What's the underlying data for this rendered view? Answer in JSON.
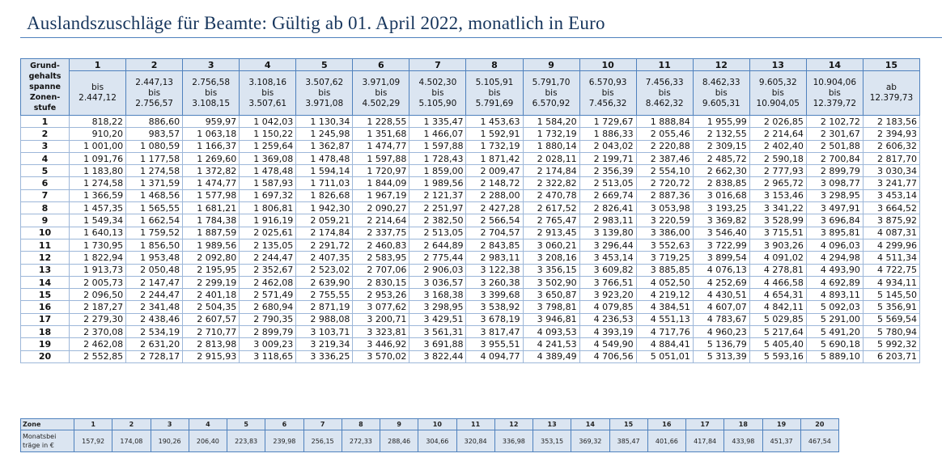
{
  "title": "Auslandszuschläge für Beamte: Gültig ab 01. April 2022, monatlich in Euro",
  "table": {
    "corner": [
      "Grund-",
      "gehalts",
      "spanne",
      "Zonen-",
      "stufe"
    ],
    "columns": [
      {
        "zone": "1",
        "range": [
          "bis",
          "2.447,12"
        ]
      },
      {
        "zone": "2",
        "range": [
          "2.447,13",
          "bis",
          "2.756,57"
        ]
      },
      {
        "zone": "3",
        "range": [
          "2.756,58",
          "bis",
          "3.108,15"
        ]
      },
      {
        "zone": "4",
        "range": [
          "3.108,16",
          "bis",
          "3.507,61"
        ]
      },
      {
        "zone": "5",
        "range": [
          "3.507,62",
          "bis",
          "3.971,08"
        ]
      },
      {
        "zone": "6",
        "range": [
          "3.971,09",
          "bis",
          "4.502,29"
        ]
      },
      {
        "zone": "7",
        "range": [
          "4.502,30",
          "bis",
          "5.105,90"
        ]
      },
      {
        "zone": "8",
        "range": [
          "5.105,91",
          "bis",
          "5.791,69"
        ]
      },
      {
        "zone": "9",
        "range": [
          "5.791,70",
          "bis",
          "6.570,92"
        ]
      },
      {
        "zone": "10",
        "range": [
          "6.570,93",
          "bis",
          "7.456,32"
        ]
      },
      {
        "zone": "11",
        "range": [
          "7.456,33",
          "bis",
          "8.462,32"
        ]
      },
      {
        "zone": "12",
        "range": [
          "8.462,33",
          "bis",
          "9.605,31"
        ]
      },
      {
        "zone": "13",
        "range": [
          "9.605,32",
          "bis",
          "10.904,05"
        ]
      },
      {
        "zone": "14",
        "range": [
          "10.904,06",
          "bis",
          "12.379,72"
        ]
      },
      {
        "zone": "15",
        "range": [
          "ab",
          "12.379,73"
        ]
      }
    ],
    "rows": [
      [
        "1",
        "818,22",
        "886,60",
        "959,97",
        "1 042,03",
        "1 130,34",
        "1 228,55",
        "1 335,47",
        "1 453,63",
        "1 584,20",
        "1 729,67",
        "1 888,84",
        "1 955,99",
        "2 026,85",
        "2 102,72",
        "2 183,56"
      ],
      [
        "2",
        "910,20",
        "983,57",
        "1 063,18",
        "1 150,22",
        "1 245,98",
        "1 351,68",
        "1 466,07",
        "1 592,91",
        "1 732,19",
        "1 886,33",
        "2 055,46",
        "2 132,55",
        "2 214,64",
        "2 301,67",
        "2 394,93"
      ],
      [
        "3",
        "1 001,00",
        "1 080,59",
        "1 166,37",
        "1 259,64",
        "1 362,87",
        "1 474,77",
        "1 597,88",
        "1 732,19",
        "1 880,14",
        "2 043,02",
        "2 220,88",
        "2 309,15",
        "2 402,40",
        "2 501,88",
        "2 606,32"
      ],
      [
        "4",
        "1 091,76",
        "1 177,58",
        "1 269,60",
        "1 369,08",
        "1 478,48",
        "1 597,88",
        "1 728,43",
        "1 871,42",
        "2 028,11",
        "2 199,71",
        "2 387,46",
        "2 485,72",
        "2 590,18",
        "2 700,84",
        "2 817,70"
      ],
      [
        "5",
        "1 183,80",
        "1 274,58",
        "1 372,82",
        "1 478,48",
        "1 594,14",
        "1 720,97",
        "1 859,00",
        "2 009,47",
        "2 174,84",
        "2 356,39",
        "2 554,10",
        "2 662,30",
        "2 777,93",
        "2 899,79",
        "3 030,34"
      ],
      [
        "6",
        "1 274,58",
        "1 371,59",
        "1 474,77",
        "1 587,93",
        "1 711,03",
        "1 844,09",
        "1 989,56",
        "2 148,72",
        "2 322,82",
        "2 513,05",
        "2 720,72",
        "2 838,85",
        "2 965,72",
        "3 098,77",
        "3 241,77"
      ],
      [
        "7",
        "1 366,59",
        "1 468,56",
        "1 577,98",
        "1 697,32",
        "1 826,68",
        "1 967,19",
        "2 121,37",
        "2 288,00",
        "2 470,78",
        "2 669,74",
        "2 887,36",
        "3 016,68",
        "3 153,46",
        "3 298,95",
        "3 453,14"
      ],
      [
        "8",
        "1 457,35",
        "1 565,55",
        "1 681,21",
        "1 806,81",
        "1 942,30",
        "2 090,27",
        "2 251,97",
        "2 427,28",
        "2 617,52",
        "2 826,41",
        "3 053,98",
        "3 193,25",
        "3 341,22",
        "3 497,91",
        "3 664,52"
      ],
      [
        "9",
        "1 549,34",
        "1 662,54",
        "1 784,38",
        "1 916,19",
        "2 059,21",
        "2 214,64",
        "2 382,50",
        "2 566,54",
        "2 765,47",
        "2 983,11",
        "3 220,59",
        "3 369,82",
        "3 528,99",
        "3 696,84",
        "3 875,92"
      ],
      [
        "10",
        "1 640,13",
        "1 759,52",
        "1 887,59",
        "2 025,61",
        "2 174,84",
        "2 337,75",
        "2 513,05",
        "2 704,57",
        "2 913,45",
        "3 139,80",
        "3 386,00",
        "3 546,40",
        "3 715,51",
        "3 895,81",
        "4 087,31"
      ],
      [
        "11",
        "1 730,95",
        "1 856,50",
        "1 989,56",
        "2 135,05",
        "2 291,72",
        "2 460,83",
        "2 644,89",
        "2 843,85",
        "3 060,21",
        "3 296,44",
        "3 552,63",
        "3 722,99",
        "3 903,26",
        "4 096,03",
        "4 299,96"
      ],
      [
        "12",
        "1 822,94",
        "1 953,48",
        "2 092,80",
        "2 244,47",
        "2 407,35",
        "2 583,95",
        "2 775,44",
        "2 983,11",
        "3 208,16",
        "3 453,14",
        "3 719,25",
        "3 899,54",
        "4 091,02",
        "4 294,98",
        "4 511,34"
      ],
      [
        "13",
        "1 913,73",
        "2 050,48",
        "2 195,95",
        "2 352,67",
        "2 523,02",
        "2 707,06",
        "2 906,03",
        "3 122,38",
        "3 356,15",
        "3 609,82",
        "3 885,85",
        "4 076,13",
        "4 278,81",
        "4 493,90",
        "4 722,75"
      ],
      [
        "14",
        "2 005,73",
        "2 147,47",
        "2 299,19",
        "2 462,08",
        "2 639,90",
        "2 830,15",
        "3 036,57",
        "3 260,38",
        "3 502,90",
        "3 766,51",
        "4 052,50",
        "4 252,69",
        "4 466,58",
        "4 692,89",
        "4 934,11"
      ],
      [
        "15",
        "2 096,50",
        "2 244,47",
        "2 401,18",
        "2 571,49",
        "2 755,55",
        "2 953,26",
        "3 168,38",
        "3 399,68",
        "3 650,87",
        "3 923,20",
        "4 219,12",
        "4 430,51",
        "4 654,31",
        "4 893,11",
        "5 145,50"
      ],
      [
        "16",
        "2 187,27",
        "2 341,48",
        "2 504,35",
        "2 680,94",
        "2 871,19",
        "3 077,62",
        "3 298,95",
        "3 538,92",
        "3 798,81",
        "4 079,85",
        "4 384,51",
        "4 607,07",
        "4 842,11",
        "5 092,03",
        "5 356,91"
      ],
      [
        "17",
        "2 279,30",
        "2 438,46",
        "2 607,57",
        "2 790,35",
        "2 988,08",
        "3 200,71",
        "3 429,51",
        "3 678,19",
        "3 946,81",
        "4 236,53",
        "4 551,13",
        "4 783,67",
        "5 029,85",
        "5 291,00",
        "5 569,54"
      ],
      [
        "18",
        "2 370,08",
        "2 534,19",
        "2 710,77",
        "2 899,79",
        "3 103,71",
        "3 323,81",
        "3 561,31",
        "3 817,47",
        "4 093,53",
        "4 393,19",
        "4 717,76",
        "4 960,23",
        "5 217,64",
        "5 491,20",
        "5 780,94"
      ],
      [
        "19",
        "2 462,08",
        "2 631,20",
        "2 813,98",
        "3 009,23",
        "3 219,34",
        "3 446,92",
        "3 691,88",
        "3 955,51",
        "4 241,53",
        "4 549,90",
        "4 884,41",
        "5 136,79",
        "5 405,40",
        "5 690,18",
        "5 992,32"
      ],
      [
        "20",
        "2 552,85",
        "2 728,17",
        "2 915,93",
        "3 118,65",
        "3 336,25",
        "3 570,02",
        "3 822,44",
        "4 094,77",
        "4 389,49",
        "4 706,56",
        "5 051,01",
        "5 313,39",
        "5 593,16",
        "5 889,10",
        "6 203,71"
      ]
    ]
  },
  "summary": {
    "zone_label": "Zone",
    "zones": [
      "1",
      "2",
      "3",
      "4",
      "5",
      "6",
      "7",
      "8",
      "9",
      "10",
      "11",
      "12",
      "13",
      "14",
      "15",
      "16",
      "17",
      "18",
      "19",
      "20"
    ],
    "amount_label": [
      "Monatsbei",
      "träge in €"
    ],
    "amounts": [
      "157,92",
      "174,08",
      "190,26",
      "206,40",
      "223,83",
      "239,98",
      "256,15",
      "272,33",
      "288,46",
      "304,66",
      "320,84",
      "336,98",
      "353,15",
      "369,32",
      "385,47",
      "401,66",
      "417,84",
      "433,98",
      "451,37",
      "467,54"
    ]
  }
}
